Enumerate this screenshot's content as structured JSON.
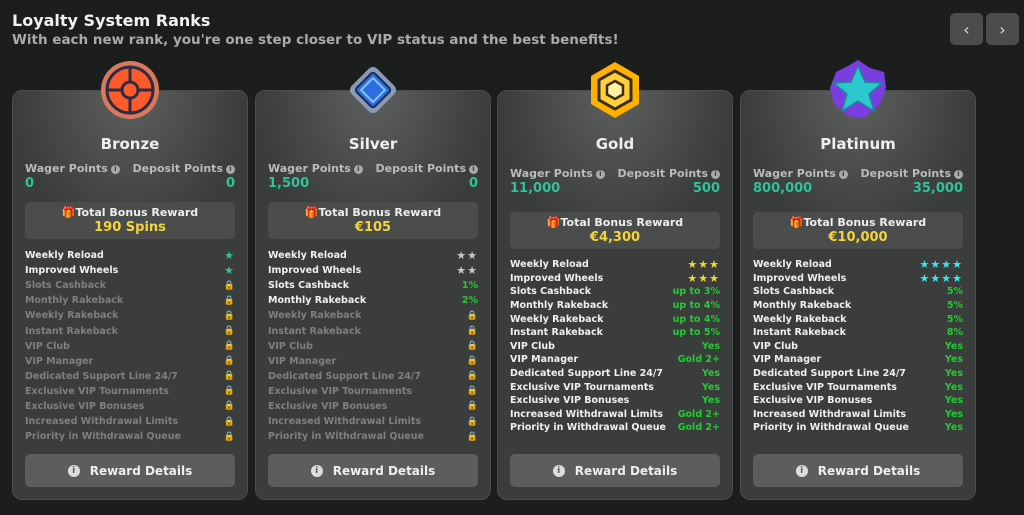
{
  "header": {
    "title": "Loyalty System Ranks",
    "subtitle": "With each new rank, you're one step closer to VIP status and the best benefits!",
    "prev_icon": "chevron-left-icon",
    "next_icon": "chevron-right-icon"
  },
  "labels": {
    "wager": "Wager Points",
    "deposit": "Deposit Points",
    "total_reward": "Total Bonus Reward",
    "details": "Reward Details"
  },
  "colors": {
    "points": "#2fc39a",
    "reward": "#f5d53a",
    "value": "#22cc33"
  },
  "cards": [
    {
      "rank": "Bronze",
      "badge": "bronze-target-icon",
      "wager": "0",
      "deposit": "0",
      "reward": "190 Spins",
      "star_color": "#2fc39a",
      "rows": [
        {
          "label": "Weekly Reload",
          "stars": 1
        },
        {
          "label": "Improved Wheels",
          "stars": 1
        },
        {
          "label": "Slots Cashback",
          "locked": true
        },
        {
          "label": "Monthly Rakeback",
          "locked": true
        },
        {
          "label": "Weekly Rakeback",
          "locked": true
        },
        {
          "label": "Instant Rakeback",
          "locked": true
        },
        {
          "label": "VIP Club",
          "locked": true
        },
        {
          "label": "VIP Manager",
          "locked": true
        },
        {
          "label": "Dedicated Support Line 24/7",
          "locked": true
        },
        {
          "label": "Exclusive VIP Tournaments",
          "locked": true
        },
        {
          "label": "Exclusive VIP Bonuses",
          "locked": true
        },
        {
          "label": "Increased Withdrawal Limits",
          "locked": true
        },
        {
          "label": "Priority in Withdrawal Queue",
          "locked": true
        }
      ]
    },
    {
      "rank": "Silver",
      "badge": "silver-diamond-icon",
      "wager": "1,500",
      "deposit": "0",
      "reward": "€105",
      "star_color": "#c8c8c8",
      "rows": [
        {
          "label": "Weekly Reload",
          "stars": 2
        },
        {
          "label": "Improved Wheels",
          "stars": 2
        },
        {
          "label": "Slots Cashback",
          "value": "1%"
        },
        {
          "label": "Monthly Rakeback",
          "value": "2%"
        },
        {
          "label": "Weekly Rakeback",
          "locked": true
        },
        {
          "label": "Instant Rakeback",
          "locked": true
        },
        {
          "label": "VIP Club",
          "locked": true
        },
        {
          "label": "VIP Manager",
          "locked": true
        },
        {
          "label": "Dedicated Support Line 24/7",
          "locked": true
        },
        {
          "label": "Exclusive VIP Tournaments",
          "locked": true
        },
        {
          "label": "Exclusive VIP Bonuses",
          "locked": true
        },
        {
          "label": "Increased Withdrawal Limits",
          "locked": true
        },
        {
          "label": "Priority in Withdrawal Queue",
          "locked": true
        }
      ]
    },
    {
      "rank": "Gold",
      "badge": "gold-hexagon-icon",
      "wager": "11,000",
      "deposit": "500",
      "reward": "€4,300",
      "star_color": "#f5d53a",
      "rows": [
        {
          "label": "Weekly Reload",
          "stars": 3
        },
        {
          "label": "Improved Wheels",
          "stars": 3
        },
        {
          "label": "Slots Cashback",
          "value": "up to 3%"
        },
        {
          "label": "Monthly Rakeback",
          "value": "up to 4%"
        },
        {
          "label": "Weekly Rakeback",
          "value": "up to 4%"
        },
        {
          "label": "Instant Rakeback",
          "value": "up to 5%"
        },
        {
          "label": "VIP Club",
          "value": "Yes"
        },
        {
          "label": "VIP Manager",
          "value": "Gold 2+"
        },
        {
          "label": "Dedicated Support Line 24/7",
          "value": "Yes"
        },
        {
          "label": "Exclusive VIP Tournaments",
          "value": "Yes"
        },
        {
          "label": "Exclusive VIP Bonuses",
          "value": "Yes"
        },
        {
          "label": "Increased Withdrawal Limits",
          "value": "Gold 2+"
        },
        {
          "label": "Priority in Withdrawal Queue",
          "value": "Gold 2+"
        }
      ]
    },
    {
      "rank": "Platinum",
      "badge": "platinum-star-icon",
      "wager": "800,000",
      "deposit": "35,000",
      "reward": "€10,000",
      "star_color": "#3ee6f0",
      "rows": [
        {
          "label": "Weekly Reload",
          "stars": 4
        },
        {
          "label": "Improved Wheels",
          "stars": 4
        },
        {
          "label": "Slots Cashback",
          "value": "5%"
        },
        {
          "label": "Monthly Rakeback",
          "value": "5%"
        },
        {
          "label": "Weekly Rakeback",
          "value": "5%"
        },
        {
          "label": "Instant Rakeback",
          "value": "8%"
        },
        {
          "label": "VIP Club",
          "value": "Yes"
        },
        {
          "label": "VIP Manager",
          "value": "Yes"
        },
        {
          "label": "Dedicated Support Line 24/7",
          "value": "Yes"
        },
        {
          "label": "Exclusive VIP Tournaments",
          "value": "Yes"
        },
        {
          "label": "Exclusive VIP Bonuses",
          "value": "Yes"
        },
        {
          "label": "Increased Withdrawal Limits",
          "value": "Yes"
        },
        {
          "label": "Priority in Withdrawal Queue",
          "value": "Yes"
        }
      ]
    }
  ]
}
